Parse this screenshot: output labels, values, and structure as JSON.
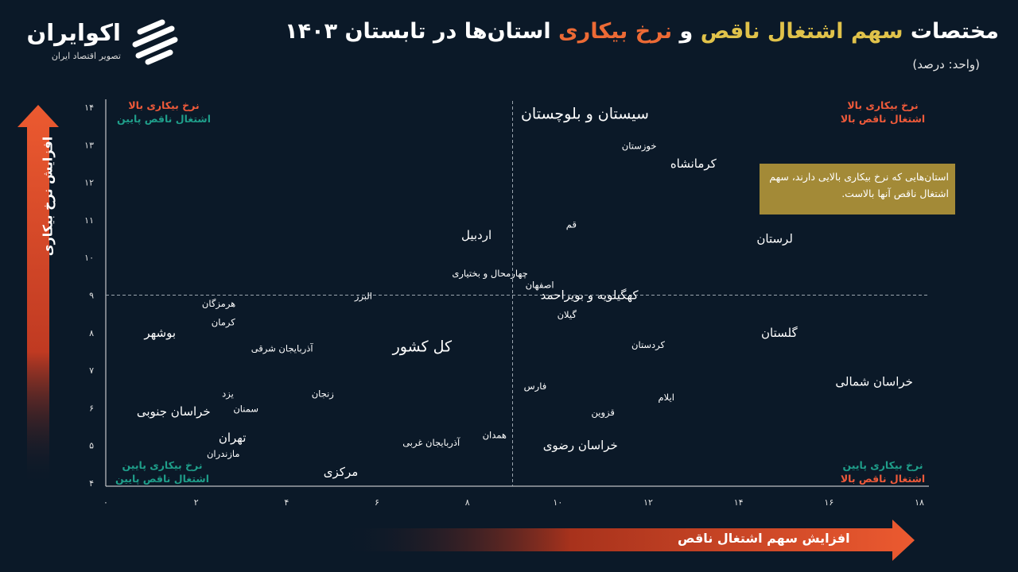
{
  "header": {
    "title_part1": "مختصات",
    "title_part2": "سهم اشتغال ناقص",
    "title_part3": "و",
    "title_part4": "نرخ بیکاری",
    "title_part5": "استان‌ها در تابستان ۱۴۰۳",
    "unit": "(واحد: درصد)"
  },
  "brand": {
    "name": "اکوایران",
    "tagline": "تصویر اقتصاد ایران",
    "logo_icon": "ecoiran-logo-icon"
  },
  "colors": {
    "background": "#0b1928",
    "highlight_yellow": "#e0c24a",
    "highlight_orange": "#ec6a35",
    "quadrant_red": "#ef5a3a",
    "quadrant_teal": "#1f9e8a",
    "note_box": "#a38a37"
  },
  "quadrants": {
    "top_left": [
      "نرخ بیکاری بالا",
      "اشتغال ناقص پایین"
    ],
    "top_right": [
      "نرخ بیکاری بالا",
      "اشتغال ناقص بالا"
    ],
    "bottom_left": [
      "نرخ بیکاری پایین",
      "اشتغال ناقص پایین"
    ],
    "bottom_right": [
      "نرخ بیکاری پایین",
      "اشتغال ناقص بالا"
    ]
  },
  "note": "استان‌هایی که نرخ بیکاری بالایی دارند، سهم اشتغال ناقص آنها بالاست.",
  "chart_data": {
    "type": "scatter",
    "xlabel": "افزایش سهم اشتغال ناقص",
    "ylabel": "افزایش نرخ بیکاری",
    "xlim": [
      0,
      18
    ],
    "ylim": [
      4,
      14
    ],
    "x_ticks": [
      0,
      2,
      4,
      6,
      8,
      10,
      12,
      14,
      16,
      18
    ],
    "x_tick_labels": [
      "۰",
      "۲",
      "۴",
      "۶",
      "۸",
      "۱۰",
      "۱۲",
      "۱۴",
      "۱۶",
      "۱۸"
    ],
    "y_ticks": [
      4,
      5,
      6,
      7,
      8,
      9,
      10,
      11,
      12,
      13,
      14
    ],
    "y_tick_labels": [
      "۴",
      "۵",
      "۶",
      "۷",
      "۸",
      "۹",
      "۱۰",
      "۱۱",
      "۱۲",
      "۱۳",
      "۱۴"
    ],
    "reference_lines": {
      "x": 9,
      "y": 9
    },
    "points": [
      {
        "label": "سیستان و بلوچستان",
        "x": 10.6,
        "y": 13.8,
        "size": "large"
      },
      {
        "label": "خوزستان",
        "x": 11.8,
        "y": 13.0,
        "size": "small"
      },
      {
        "label": "کرمانشاه",
        "x": 13.0,
        "y": 12.5,
        "size": "medium"
      },
      {
        "label": "قم",
        "x": 10.3,
        "y": 10.9,
        "size": "small"
      },
      {
        "label": "اردبیل",
        "x": 8.2,
        "y": 10.6,
        "size": "medium"
      },
      {
        "label": "لرستان",
        "x": 14.8,
        "y": 10.5,
        "size": "medium"
      },
      {
        "label": "چهارمحال و بختیاری",
        "x": 8.5,
        "y": 9.6,
        "size": "small"
      },
      {
        "label": "اصفهان",
        "x": 9.6,
        "y": 9.3,
        "size": "small"
      },
      {
        "label": "کهگیلویه و بویراحمد",
        "x": 10.7,
        "y": 9.0,
        "size": "medium"
      },
      {
        "label": "البرز",
        "x": 5.7,
        "y": 9.0,
        "size": "small"
      },
      {
        "label": "هرمزگان",
        "x": 2.5,
        "y": 8.8,
        "size": "small"
      },
      {
        "label": "کرمان",
        "x": 2.6,
        "y": 8.3,
        "size": "small"
      },
      {
        "label": "گیلان",
        "x": 10.2,
        "y": 8.5,
        "size": "small"
      },
      {
        "label": "بوشهر",
        "x": 1.2,
        "y": 8.0,
        "size": "medium"
      },
      {
        "label": "گلستان",
        "x": 14.9,
        "y": 8.0,
        "size": "medium"
      },
      {
        "label": "کردستان",
        "x": 12.0,
        "y": 7.7,
        "size": "small"
      },
      {
        "label": "آذربایجان شرقی",
        "x": 3.9,
        "y": 7.6,
        "size": "small"
      },
      {
        "label": "کل کشور",
        "x": 7.0,
        "y": 7.6,
        "size": "large"
      },
      {
        "label": "خراسان شمالی",
        "x": 17.0,
        "y": 6.7,
        "size": "medium"
      },
      {
        "label": "فارس",
        "x": 9.5,
        "y": 6.6,
        "size": "small"
      },
      {
        "label": "زنجان",
        "x": 4.8,
        "y": 6.4,
        "size": "small"
      },
      {
        "label": "یزد",
        "x": 2.7,
        "y": 6.4,
        "size": "small"
      },
      {
        "label": "ایلام",
        "x": 12.4,
        "y": 6.3,
        "size": "small"
      },
      {
        "label": "سمنان",
        "x": 3.1,
        "y": 6.0,
        "size": "small"
      },
      {
        "label": "خراسان جنوبی",
        "x": 1.5,
        "y": 5.9,
        "size": "medium"
      },
      {
        "label": "قزوین",
        "x": 11.0,
        "y": 5.9,
        "size": "small"
      },
      {
        "label": "تهران",
        "x": 2.8,
        "y": 5.2,
        "size": "medium"
      },
      {
        "label": "همدان",
        "x": 8.6,
        "y": 5.3,
        "size": "small"
      },
      {
        "label": "آذربایجان غربی",
        "x": 7.2,
        "y": 5.1,
        "size": "small"
      },
      {
        "label": "خراسان رضوی",
        "x": 10.5,
        "y": 5.0,
        "size": "medium"
      },
      {
        "label": "مازندران",
        "x": 2.6,
        "y": 4.8,
        "size": "small"
      },
      {
        "label": "مرکزی",
        "x": 5.2,
        "y": 4.3,
        "size": "medium"
      }
    ]
  }
}
